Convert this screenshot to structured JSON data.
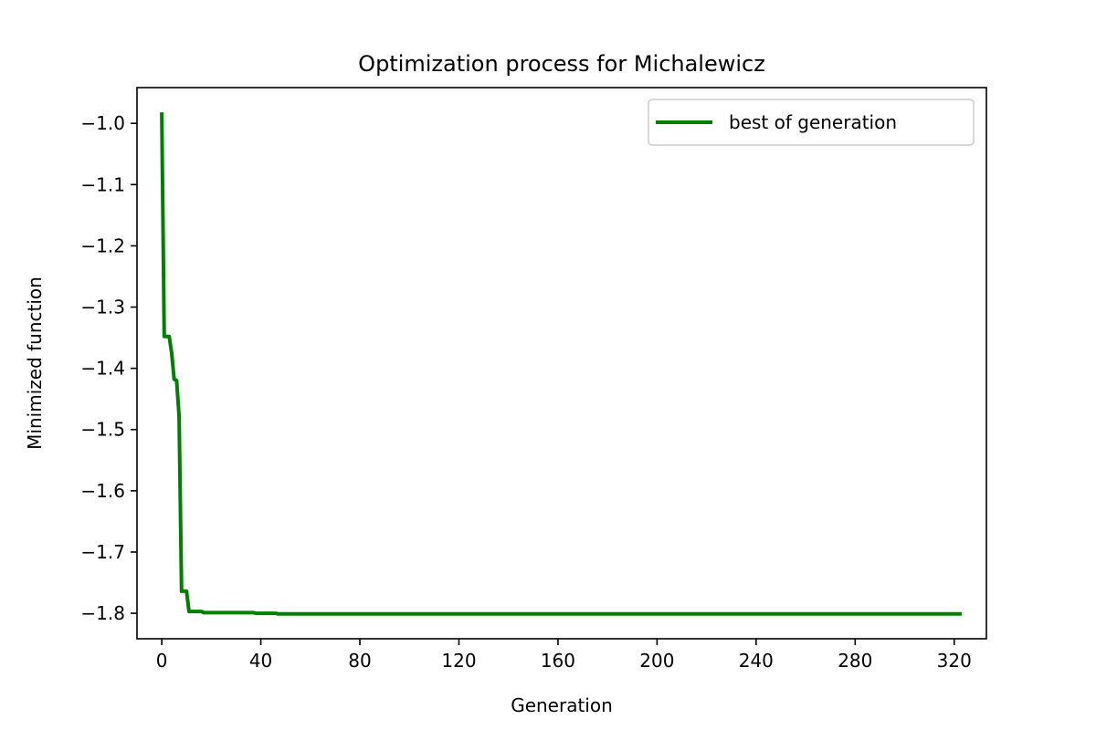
{
  "chart_data": {
    "type": "line",
    "title": "Optimization process for Michalewicz",
    "xlabel": "Generation",
    "ylabel": "Minimized function",
    "xlim": [
      -10,
      333
    ],
    "ylim": [
      -1.8416,
      -0.9416
    ],
    "xticks": [
      0,
      40,
      80,
      120,
      160,
      200,
      240,
      280,
      320
    ],
    "yticks": [
      -1.0,
      -1.1,
      -1.2,
      -1.3,
      -1.4,
      -1.5,
      -1.6,
      -1.7,
      -1.8
    ],
    "xtick_labels": [
      "0",
      "40",
      "80",
      "120",
      "160",
      "200",
      "240",
      "280",
      "320"
    ],
    "ytick_labels": [
      "−1.0",
      "−1.1",
      "−1.2",
      "−1.3",
      "−1.4",
      "−1.5",
      "−1.6",
      "−1.7",
      "−1.8"
    ],
    "grid": false,
    "legend_position": "top-right",
    "series": [
      {
        "name": "best of generation",
        "color": "#008000",
        "x": [
          0,
          1,
          3,
          4,
          5,
          6,
          7,
          8,
          10,
          11,
          16,
          17,
          37,
          38,
          46,
          47,
          323
        ],
        "y": [
          -0.982,
          -1.348,
          -1.348,
          -1.375,
          -1.418,
          -1.42,
          -1.478,
          -1.764,
          -1.764,
          -1.797,
          -1.797,
          -1.799,
          -1.799,
          -1.8,
          -1.8,
          -1.801,
          -1.801
        ]
      }
    ]
  }
}
